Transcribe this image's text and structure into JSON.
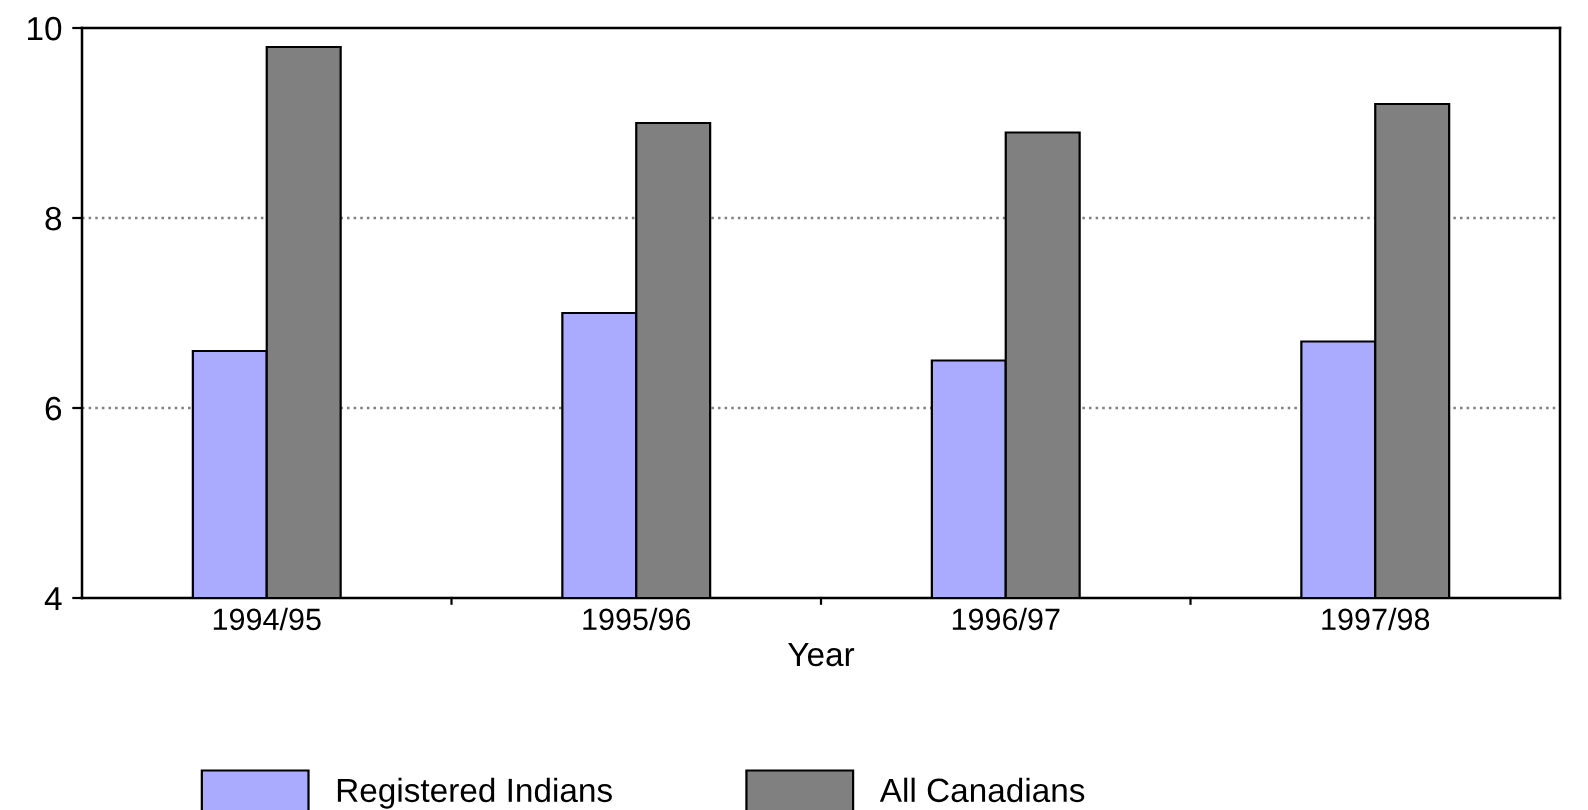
{
  "chart_data": {
    "type": "bar",
    "xlabel": "Year",
    "categories": [
      "1994/95",
      "1995/96",
      "1996/97",
      "1997/98"
    ],
    "series": [
      {
        "name": "Registered Indians",
        "color": "#aaaaff",
        "values": [
          6.6,
          7.0,
          6.5,
          6.7
        ]
      },
      {
        "name": "All Canadians",
        "color": "#808080",
        "values": [
          9.8,
          9.0,
          8.9,
          9.2
        ]
      }
    ],
    "ylim": [
      4,
      10
    ],
    "yticks": [
      4,
      6,
      8,
      10
    ],
    "grid": "y",
    "legend": "bottom"
  }
}
